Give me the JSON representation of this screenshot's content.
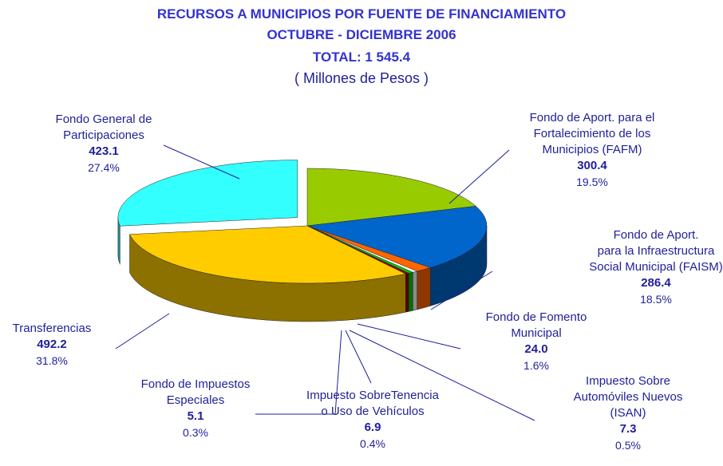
{
  "chart_data": {
    "type": "pie3d",
    "title": "RECURSOS A MUNICIPIOS POR FUENTE DE FINANCIAMIENTO",
    "subtitle": "OCTUBRE - DICIEMBRE 2006",
    "total": 1545.4,
    "total_label": "TOTAL: 1 545.4",
    "unit": "( Millones de Pesos )",
    "categories": [
      "Fondo de Aport. para el\nFortalecimiento de los\nMunicipios (FAFM)",
      "Fondo de Aport.\npara la Infraestructura\nSocial Municipal (FAISM)",
      "Fondo de Fomento\nMunicipal",
      "Impuesto Sobre\nAutomóviles Nuevos\n(ISAN)",
      "Impuesto SobreTenencia\no Uso de Vehículos",
      "Fondo de Impuestos\nEspeciales",
      "Transferencias",
      "Fondo General de\nParticipaciones"
    ],
    "values": [
      300.4,
      286.4,
      24.0,
      7.3,
      6.9,
      5.1,
      492.2,
      423.1
    ],
    "value_labels": [
      "300.4",
      "286.4",
      "24.0",
      "7.3",
      "6.9",
      "5.1",
      "492.2",
      "423.1"
    ],
    "percentages": [
      19.5,
      18.5,
      1.6,
      0.5,
      0.4,
      0.3,
      31.8,
      27.4
    ],
    "percentage_labels": [
      "19.5%",
      "18.5%",
      "1.6%",
      "0.5%",
      "0.4%",
      "0.3%",
      "31.8%",
      "27.4%"
    ],
    "colors": [
      "#99cc00",
      "#0066cc",
      "#ff6600",
      "#ffffff",
      "#00cc00",
      "#990000",
      "#ffcc00",
      "#33ffff"
    ],
    "exploded": [
      false,
      false,
      false,
      false,
      false,
      false,
      false,
      true
    ]
  }
}
